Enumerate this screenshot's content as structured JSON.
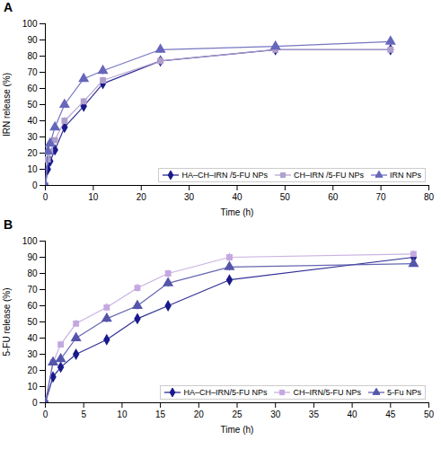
{
  "chart_data": [
    {
      "type": "line",
      "title": "A",
      "xlabel": "Time (h)",
      "ylabel": "IRN release (%)",
      "xlim": [
        0,
        80
      ],
      "ylim": [
        0,
        100
      ],
      "xticks": [
        0,
        10,
        20,
        30,
        40,
        50,
        60,
        70,
        80
      ],
      "yticks": [
        0,
        10,
        20,
        30,
        40,
        50,
        60,
        70,
        80,
        90,
        100
      ],
      "grid": false,
      "legend": "lower right",
      "series": [
        {
          "name": "HA–CH–IRN /5-FU NPs",
          "color": "#1a1a8c",
          "marker": "diamond",
          "x": [
            0,
            0.5,
            1,
            2,
            4,
            8,
            12,
            24,
            48,
            72
          ],
          "values": [
            0,
            10,
            15,
            22,
            36,
            49,
            63,
            77,
            84,
            84
          ],
          "yerr": [
            0,
            1.0,
            1.2,
            1.5,
            2.0,
            2.5,
            2.0,
            2.5,
            2.0,
            2.0
          ]
        },
        {
          "name": "CH–IRN /5-FU NPs",
          "color": "#b09fcc",
          "marker": "square",
          "x": [
            0,
            0.5,
            1,
            2,
            4,
            8,
            12,
            24,
            48,
            72
          ],
          "values": [
            0,
            16,
            21,
            28,
            40,
            52,
            65,
            77,
            84,
            84
          ],
          "yerr": [
            0,
            1.2,
            1.3,
            1.5,
            2.0,
            2.0,
            2.0,
            2.5,
            2.0,
            2.0
          ]
        },
        {
          "name": "IRN NPs",
          "color": "#6666bb",
          "marker": "triangle",
          "x": [
            0,
            0.5,
            1,
            2,
            4,
            8,
            12,
            24,
            48,
            72
          ],
          "values": [
            0,
            21,
            26,
            36,
            50,
            66,
            71,
            84,
            86,
            89
          ],
          "yerr": [
            0,
            1.5,
            1.5,
            2.0,
            2.0,
            2.0,
            2.5,
            2.0,
            2.0,
            2.0
          ]
        }
      ]
    },
    {
      "type": "line",
      "title": "B",
      "xlabel": "Time (h)",
      "ylabel": "5-FU release (%)",
      "xlim": [
        0,
        50
      ],
      "ylim": [
        0,
        100
      ],
      "xticks": [
        0,
        5,
        10,
        15,
        20,
        25,
        30,
        35,
        40,
        45,
        50
      ],
      "yticks": [
        0,
        10,
        20,
        30,
        40,
        50,
        60,
        70,
        80,
        90,
        100
      ],
      "grid": false,
      "legend": "lower right",
      "series": [
        {
          "name": "HA–CH–IRN/5-FU NPs",
          "color": "#1a1a8c",
          "marker": "diamond",
          "x": [
            0,
            1,
            2,
            4,
            8,
            12,
            16,
            24,
            48
          ],
          "values": [
            0,
            16,
            22,
            30,
            39,
            52,
            60,
            76,
            90
          ],
          "yerr": [
            0,
            1.5,
            1.5,
            2.0,
            2.5,
            2.5,
            2.5,
            2.5,
            2.5
          ]
        },
        {
          "name": "CH–IRN/5-FU NPs",
          "color": "#c4a8e0",
          "marker": "square",
          "x": [
            0,
            1,
            2,
            4,
            8,
            12,
            16,
            24,
            48
          ],
          "values": [
            0,
            25,
            36,
            49,
            59,
            71,
            80,
            90,
            92
          ],
          "yerr": [
            0,
            1.5,
            2.0,
            2.0,
            2.5,
            2.5,
            2.0,
            2.5,
            2.0
          ]
        },
        {
          "name": "5-Fu NPs",
          "color": "#5555aa",
          "marker": "triangle",
          "x": [
            0,
            1,
            2,
            4,
            8,
            12,
            16,
            24,
            48
          ],
          "values": [
            0,
            25,
            27,
            40,
            52,
            60,
            74,
            84,
            86
          ],
          "yerr": [
            0,
            1.5,
            2.0,
            2.0,
            2.5,
            2.5,
            2.5,
            2.5,
            2.0
          ]
        }
      ]
    }
  ]
}
